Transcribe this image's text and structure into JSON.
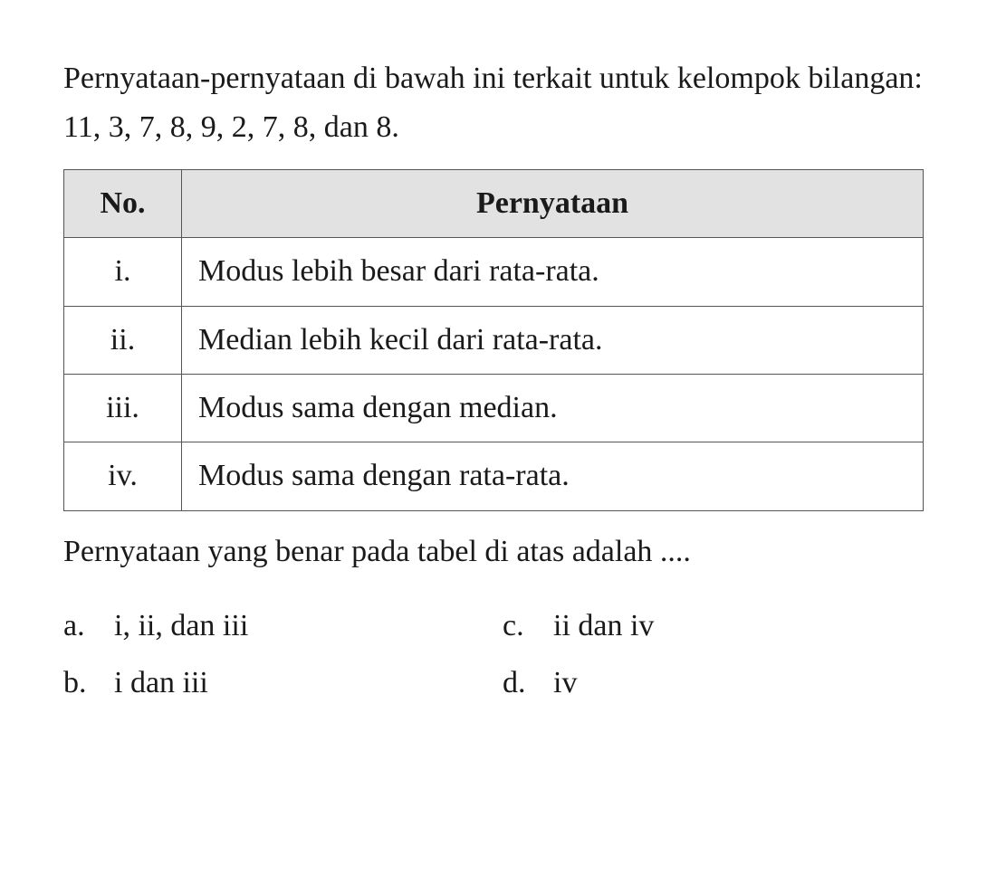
{
  "intro": "Pernyataan-pernyataan di bawah ini terkait untuk kelompok bilangan: 11, 3, 7, 8, 9, 2, 7, 8, dan 8.",
  "table": {
    "headers": {
      "col1": "No.",
      "col2": "Pernyataan"
    },
    "rows": [
      {
        "no": "i.",
        "statement": "Modus lebih besar dari rata-rata."
      },
      {
        "no": "ii.",
        "statement": "Median lebih kecil dari rata-rata."
      },
      {
        "no": "iii.",
        "statement": "Modus sama dengan median."
      },
      {
        "no": "iv.",
        "statement": "Modus sama dengan rata-rata."
      }
    ]
  },
  "question": "Pernyataan yang benar pada tabel di atas adalah ....",
  "options": {
    "a": {
      "letter": "a.",
      "text": "i, ii, dan iii"
    },
    "b": {
      "letter": "b.",
      "text": "i dan iii"
    },
    "c": {
      "letter": "c.",
      "text": "ii dan iv"
    },
    "d": {
      "letter": "d.",
      "text": "iv"
    }
  },
  "colors": {
    "background": "#ffffff",
    "text": "#1a1a1a",
    "header_bg": "#e2e2e2",
    "border": "#555555"
  },
  "typography": {
    "font_family": "Times New Roman",
    "body_fontsize": 34,
    "line_height": 1.6
  }
}
